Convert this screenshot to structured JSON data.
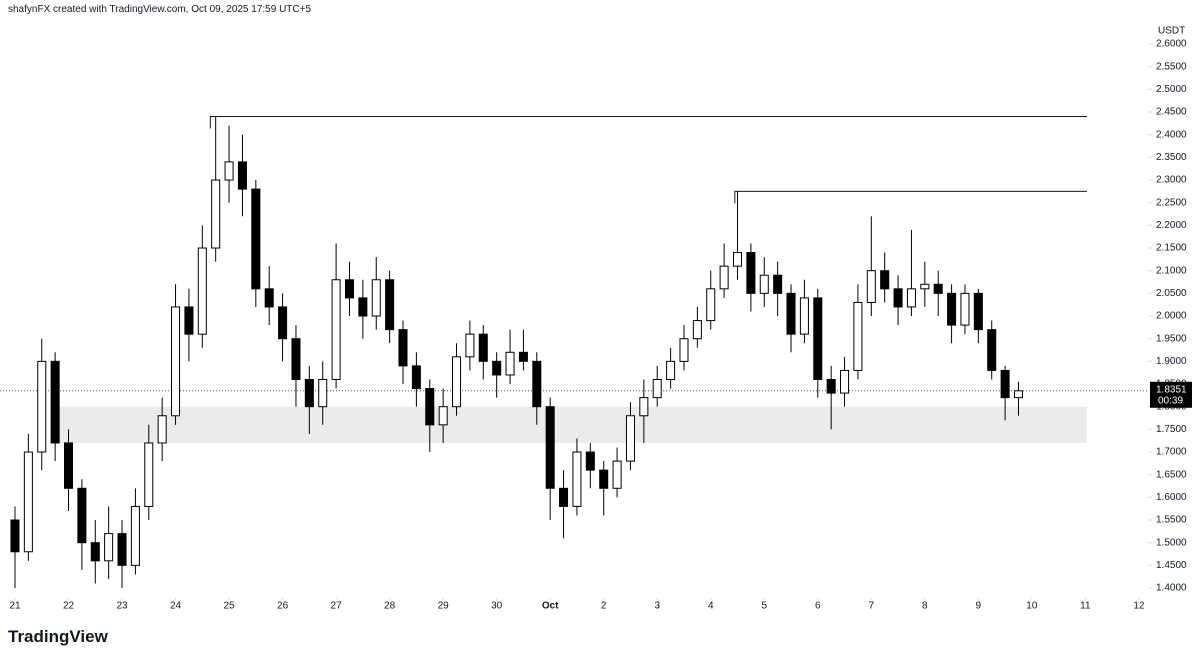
{
  "header": "shafynFX created with TradingView.com, Oct 09, 2025 17:59 UTC+5",
  "brand": "TradingView",
  "chart_data": {
    "type": "candlestick",
    "unit": "USDT",
    "x": [
      0,
      0.25,
      0.5,
      0.75,
      1,
      1.25,
      1.5,
      1.75,
      2,
      2.25,
      2.5,
      2.75,
      3,
      3.25,
      3.5,
      3.75,
      4,
      4.25,
      4.5,
      4.75,
      5,
      5.25,
      5.5,
      5.75,
      6,
      6.25,
      6.5,
      6.75,
      7,
      7.25,
      7.5,
      7.75,
      8,
      8.25,
      8.5,
      8.75,
      9,
      9.25,
      9.5,
      9.75,
      10,
      10.25,
      10.5,
      10.75,
      11,
      11.25,
      11.5,
      11.75,
      12,
      12.25,
      12.5,
      12.75,
      13,
      13.25,
      13.5,
      13.75,
      14,
      14.25,
      14.5,
      14.75,
      15,
      15.25,
      15.5,
      15.75,
      16,
      16.25,
      16.5,
      16.75,
      17,
      17.25,
      17.5,
      17.75,
      18,
      18.25,
      18.5,
      18.75
    ],
    "open": [
      1.55,
      1.48,
      1.7,
      1.9,
      1.72,
      1.62,
      1.5,
      1.46,
      1.52,
      1.45,
      1.58,
      1.72,
      1.78,
      2.02,
      1.96,
      2.15,
      2.3,
      2.34,
      2.28,
      2.06,
      2.02,
      1.95,
      1.86,
      1.8,
      1.86,
      2.08,
      2.04,
      2.0,
      2.08,
      1.97,
      1.89,
      1.84,
      1.76,
      1.8,
      1.91,
      1.96,
      1.9,
      1.87,
      1.92,
      1.9,
      1.8,
      1.62,
      1.58,
      1.7,
      1.66,
      1.62,
      1.68,
      1.78,
      1.82,
      1.86,
      1.9,
      1.95,
      1.99,
      2.06,
      2.11,
      2.14,
      2.05,
      2.09,
      2.05,
      1.96,
      2.04,
      1.86,
      1.83,
      1.88,
      2.03,
      2.1,
      2.06,
      2.02,
      2.06,
      2.07,
      2.05,
      1.98,
      2.05,
      1.97,
      1.88,
      1.82
    ],
    "high": [
      1.58,
      1.74,
      1.95,
      1.92,
      1.75,
      1.64,
      1.55,
      1.58,
      1.55,
      1.62,
      1.76,
      1.82,
      2.07,
      2.06,
      2.2,
      2.44,
      2.42,
      2.4,
      2.3,
      2.11,
      2.05,
      1.98,
      1.89,
      1.9,
      2.16,
      2.12,
      2.08,
      2.13,
      2.1,
      1.99,
      1.92,
      1.86,
      1.84,
      1.94,
      1.99,
      1.98,
      1.92,
      1.97,
      1.97,
      1.92,
      1.82,
      1.66,
      1.73,
      1.72,
      1.68,
      1.71,
      1.81,
      1.86,
      1.89,
      1.93,
      1.98,
      2.02,
      2.1,
      2.16,
      2.275,
      2.16,
      2.13,
      2.12,
      2.07,
      2.08,
      2.06,
      1.89,
      1.91,
      2.07,
      2.22,
      2.14,
      2.09,
      2.19,
      2.12,
      2.1,
      2.07,
      2.07,
      2.06,
      1.99,
      1.89,
      1.855
    ],
    "low": [
      1.4,
      1.46,
      1.66,
      1.68,
      1.57,
      1.44,
      1.41,
      1.42,
      1.4,
      1.43,
      1.55,
      1.68,
      1.76,
      1.9,
      1.93,
      2.12,
      2.25,
      2.22,
      2.02,
      1.98,
      1.9,
      1.8,
      1.74,
      1.76,
      1.84,
      2.0,
      1.95,
      1.97,
      1.94,
      1.85,
      1.8,
      1.7,
      1.72,
      1.78,
      1.88,
      1.86,
      1.82,
      1.85,
      1.88,
      1.76,
      1.55,
      1.51,
      1.56,
      1.62,
      1.56,
      1.6,
      1.66,
      1.72,
      1.8,
      1.84,
      1.88,
      1.93,
      1.97,
      2.04,
      2.08,
      2.01,
      2.02,
      2.0,
      1.92,
      1.94,
      1.82,
      1.75,
      1.8,
      1.86,
      2.0,
      2.03,
      1.98,
      2.0,
      2.02,
      2.0,
      1.94,
      1.96,
      1.94,
      1.86,
      1.77,
      1.78
    ],
    "close": [
      1.48,
      1.7,
      1.9,
      1.72,
      1.62,
      1.5,
      1.46,
      1.52,
      1.45,
      1.58,
      1.72,
      1.78,
      2.02,
      1.96,
      2.15,
      2.3,
      2.34,
      2.28,
      2.06,
      2.02,
      1.95,
      1.86,
      1.8,
      1.86,
      2.08,
      2.04,
      2.0,
      2.08,
      1.97,
      1.89,
      1.84,
      1.76,
      1.8,
      1.91,
      1.96,
      1.9,
      1.87,
      1.92,
      1.9,
      1.8,
      1.62,
      1.58,
      1.7,
      1.66,
      1.62,
      1.68,
      1.78,
      1.82,
      1.86,
      1.9,
      1.95,
      1.99,
      2.06,
      2.11,
      2.14,
      2.05,
      2.09,
      2.05,
      1.96,
      2.04,
      1.86,
      1.83,
      1.88,
      2.03,
      2.1,
      2.06,
      2.02,
      2.06,
      2.07,
      2.05,
      1.98,
      2.05,
      1.97,
      1.88,
      1.82,
      1.8351
    ],
    "xlim": [
      -0.28,
      21.17
    ],
    "ylim": [
      1.378,
      2.653
    ],
    "xticks": [
      {
        "value": 0,
        "label": "21"
      },
      {
        "value": 1,
        "label": "22"
      },
      {
        "value": 2,
        "label": "23"
      },
      {
        "value": 3,
        "label": "24"
      },
      {
        "value": 4,
        "label": "25"
      },
      {
        "value": 5,
        "label": "26"
      },
      {
        "value": 6,
        "label": "27"
      },
      {
        "value": 7,
        "label": "28"
      },
      {
        "value": 8,
        "label": "29"
      },
      {
        "value": 9,
        "label": "30"
      },
      {
        "value": 10,
        "label": "Oct"
      },
      {
        "value": 11,
        "label": "2"
      },
      {
        "value": 12,
        "label": "3"
      },
      {
        "value": 13,
        "label": "4"
      },
      {
        "value": 14,
        "label": "5"
      },
      {
        "value": 15,
        "label": "6"
      },
      {
        "value": 16,
        "label": "7"
      },
      {
        "value": 17,
        "label": "8"
      },
      {
        "value": 18,
        "label": "9"
      },
      {
        "value": 19,
        "label": "10"
      },
      {
        "value": 20,
        "label": "11"
      },
      {
        "value": 21,
        "label": "12"
      }
    ],
    "yticks": [
      {
        "value": 1.4,
        "label": "1.4000"
      },
      {
        "value": 1.45,
        "label": "1.4500"
      },
      {
        "value": 1.5,
        "label": "1.5000"
      },
      {
        "value": 1.55,
        "label": "1.5500"
      },
      {
        "value": 1.6,
        "label": "1.6000"
      },
      {
        "value": 1.65,
        "label": "1.6500"
      },
      {
        "value": 1.7,
        "label": "1.7000"
      },
      {
        "value": 1.75,
        "label": "1.7500"
      },
      {
        "value": 1.8,
        "label": "1.8000"
      },
      {
        "value": 1.85,
        "label": "1.8500"
      },
      {
        "value": 1.9,
        "label": "1.9000"
      },
      {
        "value": 1.95,
        "label": "1.9500"
      },
      {
        "value": 2.0,
        "label": "2.0000"
      },
      {
        "value": 2.05,
        "label": "2.0500"
      },
      {
        "value": 2.1,
        "label": "2.1000"
      },
      {
        "value": 2.15,
        "label": "2.1500"
      },
      {
        "value": 2.2,
        "label": "2.2000"
      },
      {
        "value": 2.25,
        "label": "2.2500"
      },
      {
        "value": 2.3,
        "label": "2.3000"
      },
      {
        "value": 2.35,
        "label": "2.3500"
      },
      {
        "value": 2.4,
        "label": "2.4000"
      },
      {
        "value": 2.45,
        "label": "2.4500"
      },
      {
        "value": 2.5,
        "label": "2.5000"
      },
      {
        "value": 2.55,
        "label": "2.5500"
      },
      {
        "value": 2.6,
        "label": "2.6000"
      }
    ],
    "levels": [
      {
        "value": 2.44,
        "from": 3.65,
        "to": 20.03
      },
      {
        "value": 2.275,
        "from": 13.45,
        "to": 20.03
      }
    ],
    "zone": {
      "low": 1.72,
      "high": 1.8,
      "from": 0.69,
      "to": 20.03
    },
    "last_price": 1.8351,
    "countdown": "00:39",
    "up_color": "#ffffff",
    "down_color": "#000000",
    "edge_color": "#000000"
  }
}
